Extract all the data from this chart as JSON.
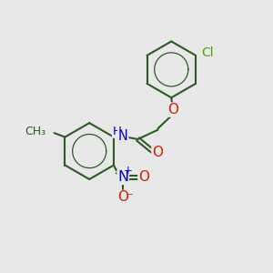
{
  "bg_color": "#e8e8e8",
  "bond_color": "#2d5a27",
  "bond_width": 1.5,
  "atom_colors": {
    "C": "#2d5a27",
    "O": "#cc2200",
    "N": "#0000cc",
    "Cl": "#4aaa00",
    "H": "#2d5a27"
  },
  "font_size": 9.5
}
